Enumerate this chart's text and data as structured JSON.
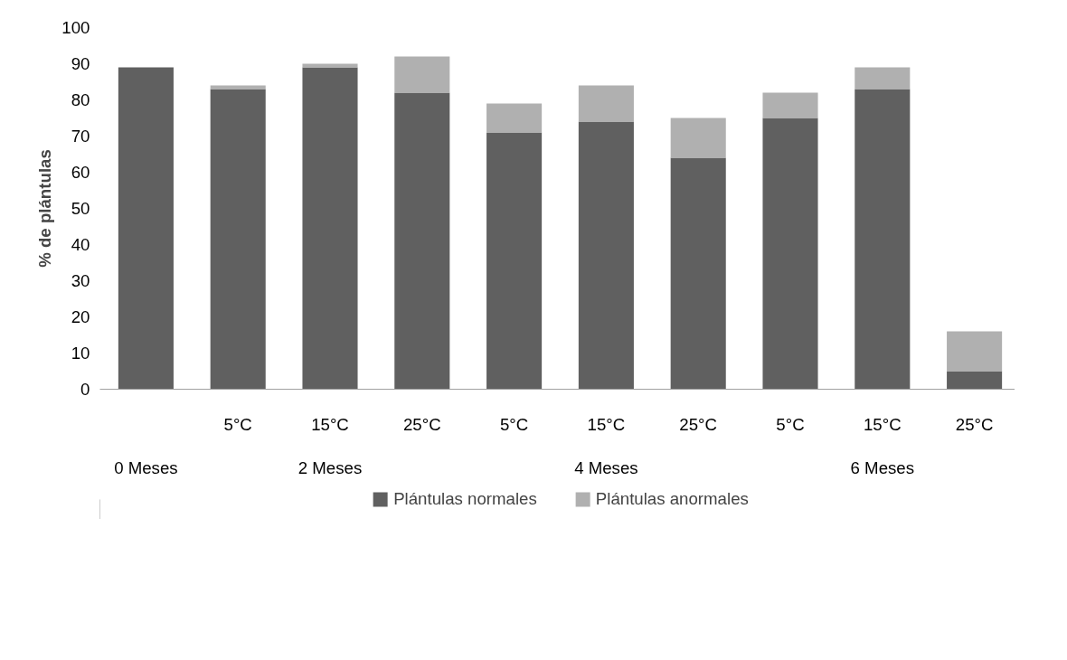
{
  "chart_data": {
    "type": "bar",
    "stacked": true,
    "ylabel": "% de plántulas",
    "categories": [
      null,
      "5°C",
      "15°C",
      "25°C",
      "5°C",
      "15°C",
      "25°C",
      "5°C",
      "15°C",
      "25°C"
    ],
    "annotations": [
      "0 Meses",
      "2 Meses",
      "4 Meses",
      "6 Meses"
    ],
    "series": [
      {
        "name": "Plántulas normales",
        "color": "#606060",
        "values": [
          89,
          83,
          89,
          82,
          71,
          74,
          64,
          75,
          83,
          5
        ]
      },
      {
        "name": "Plántulas anormales",
        "color": "#b0b0b0",
        "values": [
          0,
          1,
          1,
          10,
          8,
          10,
          11,
          7,
          6,
          11
        ]
      }
    ],
    "ylim": [
      0,
      100
    ],
    "yticks": [
      0,
      10,
      20,
      30,
      40,
      50,
      60,
      70,
      80,
      90,
      100
    ],
    "grid": false,
    "legend": "bottom"
  }
}
